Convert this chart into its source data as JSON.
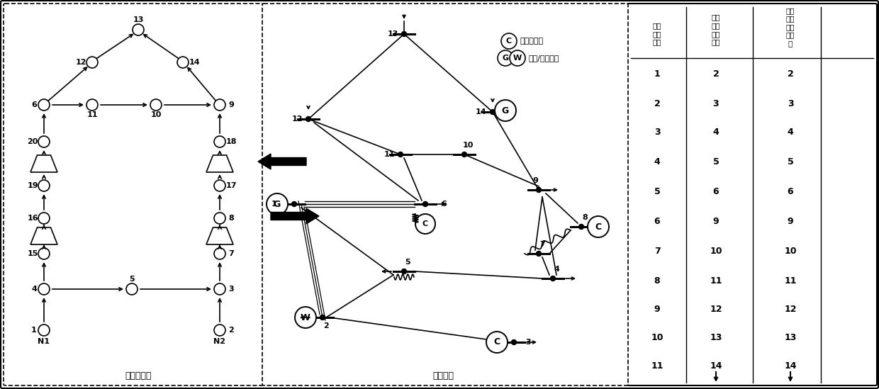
{
  "bg_color": "#ffffff",
  "table_rows": [
    [
      "1",
      "2",
      "2"
    ],
    [
      "2",
      "3",
      "3"
    ],
    [
      "3",
      "4",
      "4"
    ],
    [
      "4",
      "5",
      "5"
    ],
    [
      "5",
      "6",
      "6"
    ],
    [
      "6",
      "9",
      "9"
    ],
    [
      "7",
      "10",
      "10"
    ],
    [
      "8",
      "11",
      "11"
    ],
    [
      "9",
      "12",
      "12"
    ],
    [
      "10",
      "13",
      "13"
    ],
    [
      "11",
      "14",
      "14"
    ]
  ],
  "header0": "能源\n中心\n编号",
  "header1": "电力\n系统\n节点\n编号",
  "header2": "天然\n气系\n统节\n点编\n号",
  "legend_c": "同步调相机",
  "legend_gw": "火电/风电机组",
  "gas_label": "天然气网络",
  "elec_label": "电力网络"
}
